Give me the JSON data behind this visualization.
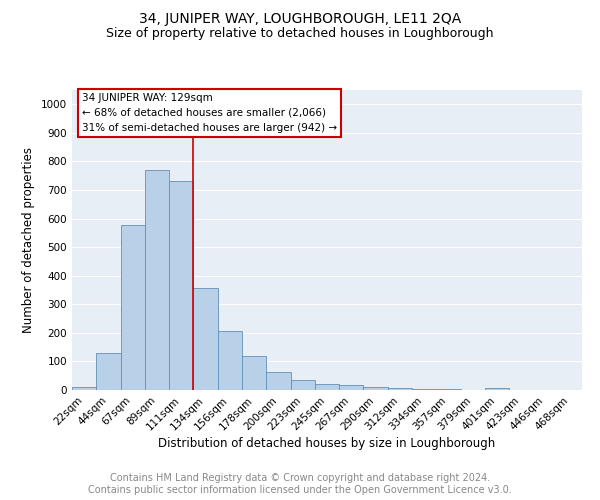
{
  "title": "34, JUNIPER WAY, LOUGHBOROUGH, LE11 2QA",
  "subtitle": "Size of property relative to detached houses in Loughborough",
  "xlabel": "Distribution of detached houses by size in Loughborough",
  "ylabel": "Number of detached properties",
  "categories": [
    "22sqm",
    "44sqm",
    "67sqm",
    "89sqm",
    "111sqm",
    "134sqm",
    "156sqm",
    "178sqm",
    "200sqm",
    "223sqm",
    "245sqm",
    "267sqm",
    "290sqm",
    "312sqm",
    "334sqm",
    "357sqm",
    "379sqm",
    "401sqm",
    "423sqm",
    "446sqm",
    "468sqm"
  ],
  "values": [
    10,
    128,
    578,
    770,
    733,
    358,
    206,
    120,
    62,
    35,
    20,
    18,
    10,
    6,
    5,
    4,
    0,
    6,
    0,
    0,
    0
  ],
  "bar_color": "#b8d0e8",
  "bar_edge_color": "#6090b8",
  "bg_color": "#e8eef6",
  "grid_color": "#ffffff",
  "property_line_color": "#cc0000",
  "annotation_text": "34 JUNIPER WAY: 129sqm\n← 68% of detached houses are smaller (2,066)\n31% of semi-detached houses are larger (942) →",
  "annotation_box_color": "#cc0000",
  "ylim": [
    0,
    1050
  ],
  "yticks": [
    0,
    100,
    200,
    300,
    400,
    500,
    600,
    700,
    800,
    900,
    1000
  ],
  "footer_line1": "Contains HM Land Registry data © Crown copyright and database right 2024.",
  "footer_line2": "Contains public sector information licensed under the Open Government Licence v3.0.",
  "title_fontsize": 10,
  "subtitle_fontsize": 9,
  "axis_label_fontsize": 8.5,
  "tick_fontsize": 7.5,
  "annotation_fontsize": 7.5,
  "footer_fontsize": 7
}
